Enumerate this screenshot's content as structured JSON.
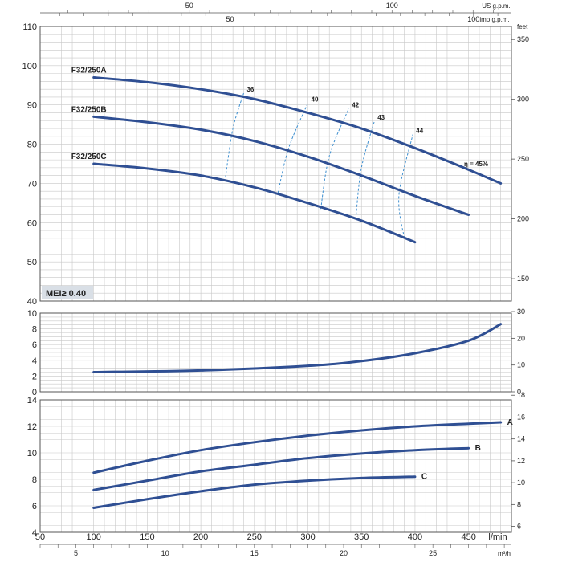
{
  "chart_data": [
    {
      "type": "line",
      "panel": "head",
      "xlim": [
        50,
        490
      ],
      "ylim": [
        40,
        110
      ],
      "yticks": [
        40,
        50,
        60,
        70,
        80,
        90,
        100,
        110
      ],
      "right_unit": "feet",
      "right_ticks": [
        150,
        200,
        250,
        300,
        350
      ],
      "series": [
        {
          "name": "F32/250A",
          "x": [
            100,
            150,
            200,
            250,
            300,
            350,
            400,
            450,
            480
          ],
          "y": [
            97,
            95.8,
            94.0,
            91.5,
            88.0,
            84.0,
            79.0,
            73.5,
            70
          ]
        },
        {
          "name": "F32/250B",
          "x": [
            100,
            150,
            200,
            250,
            300,
            350,
            400,
            450
          ],
          "y": [
            87,
            85.6,
            83.7,
            80.8,
            76.8,
            72.0,
            66.8,
            62
          ]
        },
        {
          "name": "F32/250C",
          "x": [
            100,
            150,
            200,
            250,
            300,
            350,
            400
          ],
          "y": [
            75,
            73.8,
            72.0,
            69.0,
            65.0,
            60.5,
            55
          ]
        }
      ],
      "efficiency_labels": [
        "36",
        "40",
        "42",
        "43",
        "44"
      ],
      "efficiency_note": "η = 45%",
      "efficiency_lines": [
        {
          "label": "36",
          "x": [
            223,
            230,
            240
          ],
          "y": [
            71.5,
            84,
            93
          ]
        },
        {
          "label": "40",
          "x": [
            272,
            282,
            300
          ],
          "y": [
            67.5,
            79,
            90.5
          ]
        },
        {
          "label": "42",
          "x": [
            312,
            320,
            338
          ],
          "y": [
            63.5,
            77,
            89
          ]
        },
        {
          "label": "43",
          "x": [
            345,
            350,
            362
          ],
          "y": [
            62,
            74,
            85.8
          ]
        },
        {
          "label": "44",
          "x": [
            390,
            385,
            398
          ],
          "y": [
            56,
            67,
            82.5
          ]
        }
      ],
      "badge": "MEI≥ 0.40"
    },
    {
      "type": "line",
      "panel": "power",
      "xlim": [
        50,
        490
      ],
      "ylim": [
        0,
        10
      ],
      "yticks": [
        0,
        2,
        4,
        6,
        8,
        10
      ],
      "right_ticks": [
        0,
        10,
        20,
        30
      ],
      "series": [
        {
          "name": "",
          "x": [
            100,
            200,
            300,
            350,
            400,
            450,
            480
          ],
          "y": [
            2.5,
            2.72,
            3.3,
            3.9,
            4.9,
            6.5,
            8.6
          ]
        }
      ]
    },
    {
      "type": "line",
      "panel": "npsh",
      "xlim": [
        50,
        490
      ],
      "ylim": [
        4,
        14
      ],
      "yticks": [
        4,
        6,
        8,
        10,
        12,
        14
      ],
      "right_ticks": [
        6,
        8,
        10,
        12,
        14,
        16,
        18
      ],
      "series": [
        {
          "name": "A",
          "x": [
            100,
            150,
            200,
            250,
            300,
            350,
            400,
            450,
            480
          ],
          "y": [
            8.5,
            9.4,
            10.2,
            10.8,
            11.3,
            11.7,
            12.0,
            12.2,
            12.3
          ]
        },
        {
          "name": "B",
          "x": [
            100,
            150,
            200,
            250,
            300,
            350,
            400,
            450
          ],
          "y": [
            7.2,
            7.9,
            8.6,
            9.1,
            9.6,
            9.95,
            10.2,
            10.35
          ]
        },
        {
          "name": "C",
          "x": [
            100,
            150,
            200,
            250,
            300,
            350,
            400
          ],
          "y": [
            5.85,
            6.5,
            7.1,
            7.6,
            7.9,
            8.1,
            8.2
          ]
        }
      ]
    }
  ],
  "axes": {
    "bottom_unit": "l/min",
    "bottom_ticks": [
      50,
      100,
      150,
      200,
      250,
      300,
      350,
      400,
      450
    ],
    "m3h_unit": "m³/h",
    "m3h_ticks": [
      5,
      10,
      15,
      20,
      25
    ],
    "us_unit": "US g.p.m.",
    "us_ticks": [
      50,
      100
    ],
    "imp_unit": "imp g.p.m.",
    "imp_ticks": [
      50,
      100
    ]
  },
  "colors": {
    "curve": "#2f4f93",
    "efficiency": "#3d8fd0",
    "grid": "#c8c8c8",
    "frame": "#555555",
    "badge_bg": "#d9dfe6"
  }
}
